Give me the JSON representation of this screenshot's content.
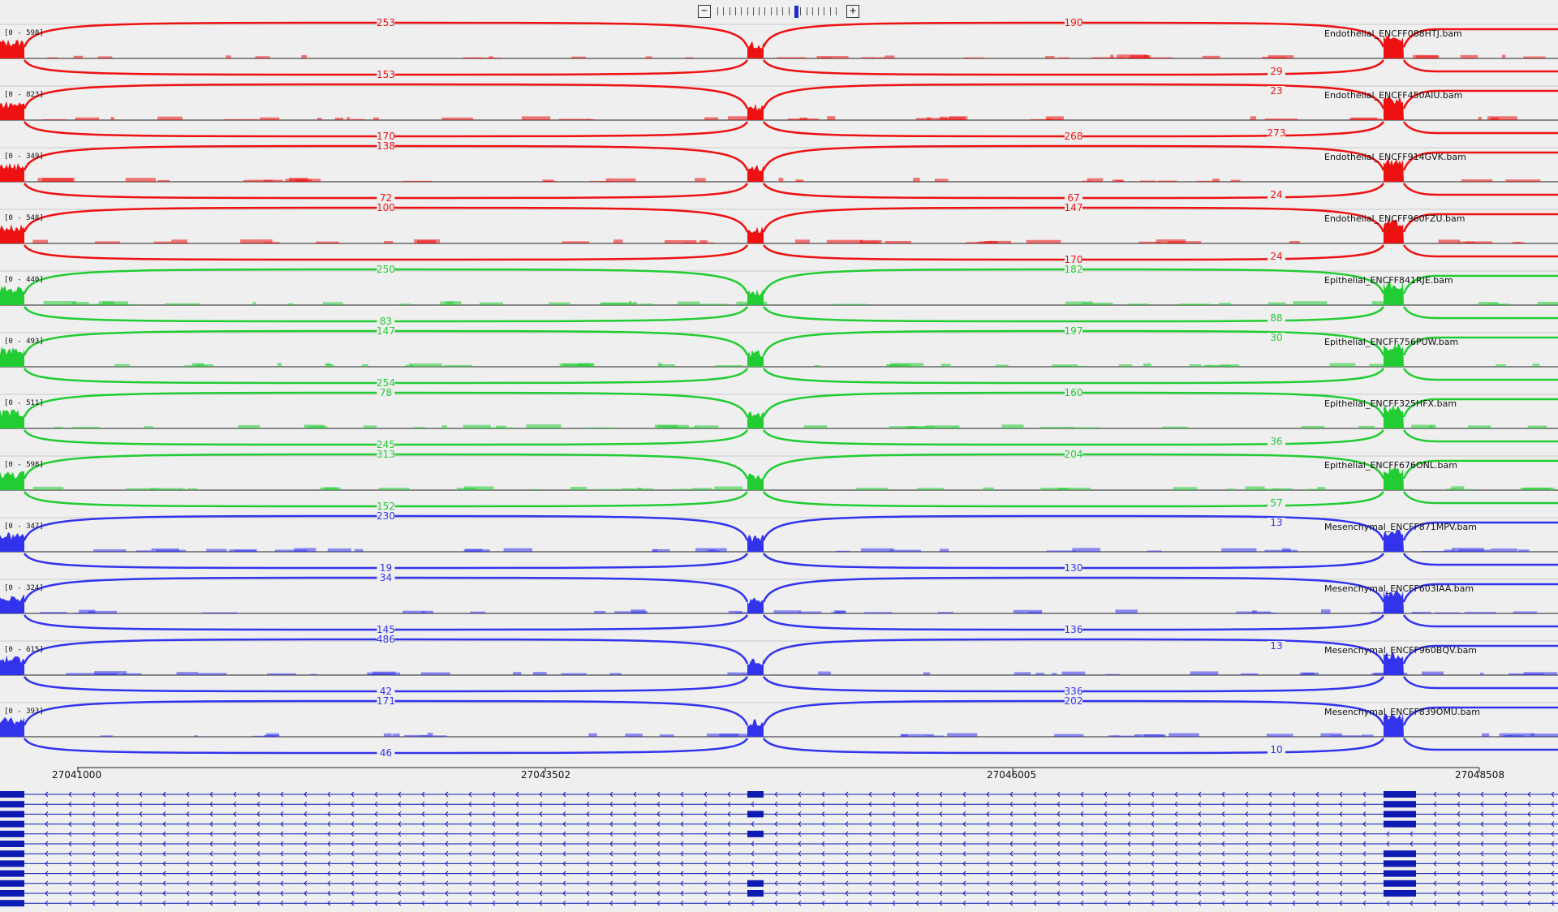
{
  "zoom": {
    "zoom_out_label": "−",
    "zoom_in_label": "+",
    "tick_count": 21,
    "active_tick": 13
  },
  "colors": {
    "Endothelial": "#ee1111",
    "Epithelial": "#22cc33",
    "Mesenchymal": "#3333ee",
    "transcript": "#0d1bb3",
    "baseline": "#222222",
    "separator": "#c8c8c8"
  },
  "tracks": [
    {
      "range": "[0 - 598]",
      "file": "Endothelial_ENCFF088HTJ.bam",
      "group": "Endothelial",
      "upper": [
        "253",
        "190",
        ""
      ],
      "lower": [
        "153",
        "",
        "29"
      ]
    },
    {
      "range": "[0 - 823]",
      "file": "Endothelial_ENCFF450AIU.bam",
      "group": "Endothelial",
      "upper": [
        "",
        "",
        "23"
      ],
      "lower": [
        "170",
        "268",
        "273"
      ]
    },
    {
      "range": "[0 - 349]",
      "file": "Endothelial_ENCFF914GVK.bam",
      "group": "Endothelial",
      "upper": [
        "138",
        "",
        ""
      ],
      "lower": [
        "72",
        "67",
        "24"
      ]
    },
    {
      "range": "[0 - 548]",
      "file": "Endothelial_ENCFF960FZU.bam",
      "group": "Endothelial",
      "upper": [
        "100",
        "147",
        ""
      ],
      "lower": [
        "",
        "170",
        "24"
      ]
    },
    {
      "range": "[0 - 440]",
      "file": "Epithelial_ENCFF841RJE.bam",
      "group": "Epithelial",
      "upper": [
        "250",
        "182",
        ""
      ],
      "lower": [
        "83",
        "",
        "88"
      ]
    },
    {
      "range": "[0 - 493]",
      "file": "Epithelial_ENCFF756PUW.bam",
      "group": "Epithelial",
      "upper": [
        "147",
        "197",
        "30"
      ],
      "lower": [
        "254",
        "",
        ""
      ]
    },
    {
      "range": "[0 - 511]",
      "file": "Epithelial_ENCFF325HFX.bam",
      "group": "Epithelial",
      "upper": [
        "78",
        "160",
        ""
      ],
      "lower": [
        "245",
        "",
        "36"
      ]
    },
    {
      "range": "[0 - 598]",
      "file": "Epithelial_ENCFF676ONL.bam",
      "group": "Epithelial",
      "upper": [
        "313",
        "204",
        ""
      ],
      "lower": [
        "152",
        "",
        "57"
      ]
    },
    {
      "range": "[0 - 347]",
      "file": "Mesenchymal_ENCFF871MPV.bam",
      "group": "Mesenchymal",
      "upper": [
        "230",
        "",
        "13"
      ],
      "lower": [
        "19",
        "130",
        ""
      ]
    },
    {
      "range": "[0 - 324]",
      "file": "Mesenchymal_ENCFF603IAA.bam",
      "group": "Mesenchymal",
      "upper": [
        "34",
        "",
        ""
      ],
      "lower": [
        "145",
        "136",
        ""
      ]
    },
    {
      "range": "[0 - 615]",
      "file": "Mesenchymal_ENCFF960BQV.bam",
      "group": "Mesenchymal",
      "upper": [
        "486",
        "",
        "13"
      ],
      "lower": [
        "42",
        "336",
        ""
      ]
    },
    {
      "range": "[0 - 393]",
      "file": "Mesenchymal_ENCFF839OMU.bam",
      "group": "Mesenchymal",
      "upper": [
        "171",
        "202",
        ""
      ],
      "lower": [
        "46",
        "",
        "10"
      ]
    }
  ],
  "ruler": {
    "positions": [
      "27041000",
      "27043502",
      "27046005",
      "27048508"
    ]
  },
  "transcripts": {
    "count": 12,
    "middle_exon_rows": [
      0,
      2,
      4,
      9,
      10
    ],
    "right_exon_rows": [
      0,
      1,
      2,
      3,
      6,
      7,
      8,
      9,
      10
    ]
  }
}
